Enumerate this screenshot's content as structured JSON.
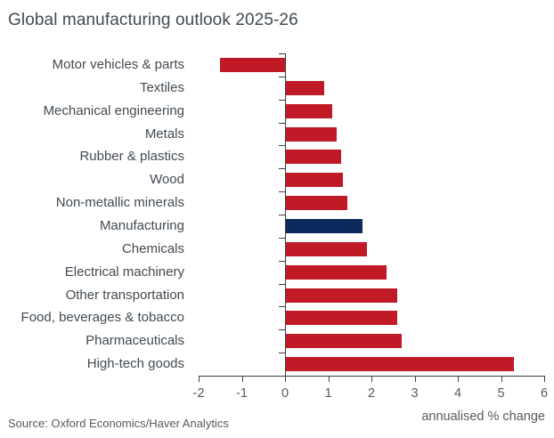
{
  "title": "Global manufacturing outlook 2025-26",
  "source": "Source: Oxford Economics/Haver Analytics",
  "axis_note": "annualised % change",
  "colors": {
    "bar_red": "#c01a26",
    "bar_navy": "#0d2a5c",
    "text_dark": "#414a52",
    "text_gray": "#595959",
    "axis_gray": "#3c3c3c"
  },
  "chart_data": {
    "type": "bar",
    "orientation": "horizontal",
    "title": "Global manufacturing outlook 2025-26",
    "xlabel": "annualised % change",
    "source": "Source: Oxford Economics/Haver Analytics",
    "xlim": [
      -2,
      6
    ],
    "xticks": [
      -2,
      -1,
      0,
      1,
      2,
      3,
      4,
      5,
      6
    ],
    "grid": false,
    "legend": false,
    "categories": [
      "Motor vehicles & parts",
      "Textiles",
      "Mechanical engineering",
      "Metals",
      "Rubber & plastics",
      "Wood",
      "Non-metallic minerals",
      "Manufacturing",
      "Chemicals",
      "Electrical machinery",
      "Other transportation",
      "Food, beverages & tobacco",
      "Pharmaceuticals",
      "High-tech goods"
    ],
    "values": [
      -1.5,
      0.9,
      1.1,
      1.2,
      1.3,
      1.35,
      1.45,
      1.8,
      1.9,
      2.35,
      2.6,
      2.6,
      2.7,
      5.3
    ],
    "highlight_category": "Manufacturing",
    "highlight_index": 7
  }
}
